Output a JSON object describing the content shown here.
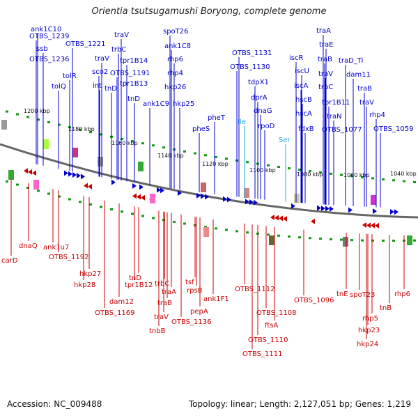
{
  "title": "Orientia tsutsugamushi Boryong, complete genome",
  "footer": {
    "accession": "Accession: NC_009488",
    "summary": "Topology: linear; Length: 2,127,051 bp; Genes: 1,219"
  },
  "colors": {
    "forward": "#0000cc",
    "reverse": "#cc0000",
    "rna": "#22aadd",
    "tick": "#119911",
    "backbone": "#666666"
  },
  "kbp_labels": [
    "1200 kbp",
    "1180 kbp",
    "1160 kbp",
    "1140 kbp",
    "1120 kbp",
    "1100 kbp",
    "1080 kbp",
    "1060 kbp",
    "1040 kbp"
  ],
  "top_genes": [
    "ank1C10",
    "OTBS_1239",
    "ssb",
    "OTBS_1236",
    "OTBS_1221",
    "traV",
    "trbC",
    "tolR",
    "tolQ",
    "traV",
    "sco2",
    "int",
    "tpr1B14",
    "OTBS_1191",
    "tpr1B13",
    "tnD",
    "tnD",
    "spoT26",
    "ank1C8",
    "rhp6",
    "rhp4",
    "hkp26",
    "ank1C9",
    "hkp25",
    "pheT",
    "pheS",
    "Ile",
    "OTBS_1131",
    "OTBS_1130",
    "tdpX1",
    "dprA",
    "dnaG",
    "rpoD",
    "Ser",
    "iscR",
    "iscU",
    "iscA",
    "hscB",
    "hscA",
    "fdxB",
    "traA",
    "traE",
    "traB",
    "traV",
    "trbC",
    "tpr1B11",
    "traN",
    "OTBS_1077",
    "traD_Ti",
    "dam11",
    "traB",
    "traV",
    "rhp4",
    "OTBS_1059"
  ],
  "bottom_genes": [
    "carD",
    "dnaQ",
    "ank1u7",
    "OTBS_1192",
    "hkp27",
    "hkp28",
    "dam12",
    "OTBS_1169",
    "tnD",
    "tpr1B12",
    "trbC",
    "traA",
    "traB",
    "traV",
    "tnbB",
    "tsf",
    "rpsB",
    "pepA",
    "OTBS_1136",
    "ank1F1",
    "OTBS_1112",
    "OTBS_1108",
    "ftsA",
    "OTBS_1110",
    "OTBS_1111",
    "OTBS_1096",
    "tnE",
    "spoT23",
    "rhp5",
    "hkp23",
    "hkp24",
    "tnB",
    "rhp6"
  ]
}
